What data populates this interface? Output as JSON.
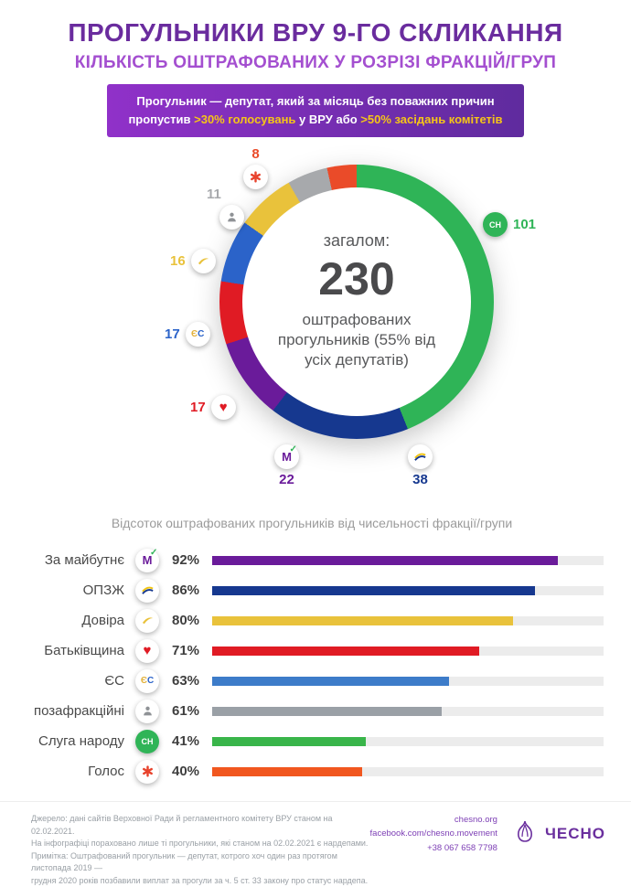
{
  "header": {
    "title": "ПРОГУЛЬНИКИ ВРУ 9-ГО СКЛИКАННЯ",
    "subtitle": "КІЛЬКІСТЬ ОШТРАФОВАНИХ У РОЗРІЗІ ФРАКЦІЙ/ГРУП"
  },
  "banner": {
    "line1": "Прогульник — депутат, який за місяць без поважних причин",
    "line2": {
      "a": "пропустив ",
      "b": ">30% голосувань",
      "c": " у ВРУ або ",
      "d": ">50% засідань комітетів"
    }
  },
  "colors": {
    "title_purple": "#6a2c9e",
    "subtitle_purple": "#a44fd0",
    "banner_highlight": "#f5c518"
  },
  "chart_data": [
    {
      "type": "pie",
      "title": "Кількість оштрафованих у розрізі фракцій/груп",
      "series": [
        {
          "name": "Слуга народу",
          "value": 101,
          "color": "#2fb457"
        },
        {
          "name": "ОПЗЖ",
          "value": 38,
          "color": "#16388f"
        },
        {
          "name": "За майбутнє",
          "value": 22,
          "color": "#6a1b9a"
        },
        {
          "name": "Батьківщина",
          "value": 17,
          "color": "#e01b24"
        },
        {
          "name": "ЄС",
          "value": 17,
          "color": "#2b63c9"
        },
        {
          "name": "Довіра",
          "value": 16,
          "color": "#e9c23b"
        },
        {
          "name": "позафракційні",
          "value": 11,
          "color": "#a7a9ac"
        },
        {
          "name": "Голос",
          "value": 8,
          "color": "#ea4b29"
        }
      ],
      "center": {
        "label": "загалом:",
        "total": "230",
        "sub": "оштрафованих прогульників (55% від усіх депутатів)"
      }
    },
    {
      "type": "bar",
      "title": "Відсоток оштрафованих прогульників від чисельності фракції/групи",
      "categories": [
        "За майбутнє",
        "ОПЗЖ",
        "Довіра",
        "Батьківщина",
        "ЄС",
        "позафракційні",
        "Слуга народу",
        "Голос"
      ],
      "values": [
        92,
        86,
        80,
        71,
        63,
        61,
        41,
        40
      ],
      "value_labels": [
        "92%",
        "86%",
        "80%",
        "71%",
        "63%",
        "61%",
        "41%",
        "40%"
      ],
      "colors": [
        "#6a1b9a",
        "#16388f",
        "#e9c23b",
        "#e01b24",
        "#3d7cc9",
        "#9aa0a6",
        "#39b54a",
        "#f1571f"
      ],
      "xlim": [
        0,
        100
      ]
    }
  ],
  "footer": {
    "lines": [
      "Джерело: дані сайтів Верховної Ради й регламентного комітету ВРУ станом на 02.02.2021.",
      "На інфографіці пораховано лише ті прогульники, які станом на 02.02.2021 є нардепами.",
      "Примітка: Оштрафований прогульник — депутат, котрого хоч один раз протягом листопада 2019 —",
      "грудня 2020 років позбавили виплат за прогули за ч. 5 ст. 33 закону про статус нардепа."
    ],
    "contacts": {
      "site": "chesno.org",
      "facebook": "facebook.com/chesno.movement",
      "phone": "+38 067 658 7798"
    },
    "logo_text": "ЧЕСНО"
  }
}
